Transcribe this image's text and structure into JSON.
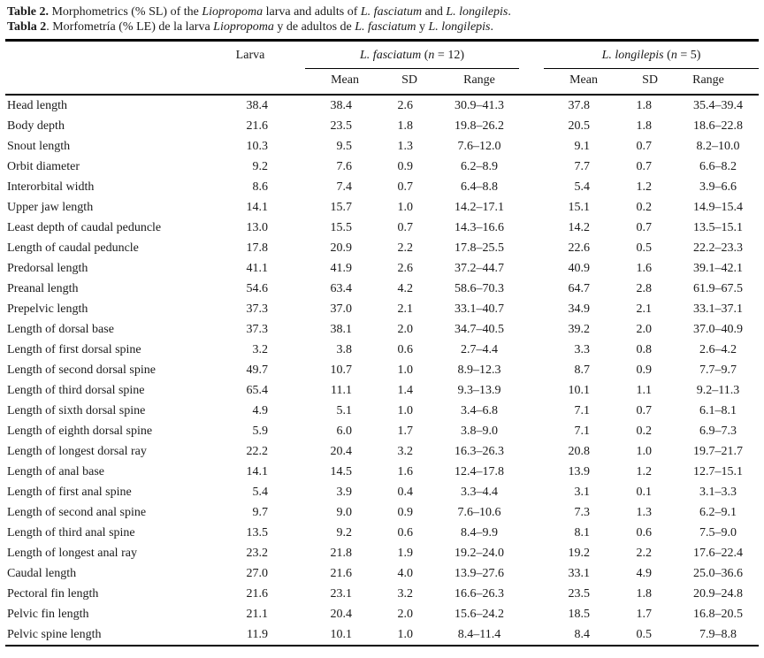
{
  "colors": {
    "background": "#ffffff",
    "text": "#1a1a1a",
    "rule": "#000000"
  },
  "captions": [
    {
      "segments": [
        {
          "text": "Table 2.",
          "bold": true
        },
        {
          "text": " Morphometrics (% SL) of the "
        },
        {
          "text": "Liopropoma",
          "italic": true
        },
        {
          "text": " larva and adults of "
        },
        {
          "text": "L. fasciatum",
          "italic": true
        },
        {
          "text": " and "
        },
        {
          "text": "L. longilepis",
          "italic": true
        },
        {
          "text": "."
        }
      ]
    },
    {
      "segments": [
        {
          "text": "Tabla 2",
          "bold": true
        },
        {
          "text": ". Morfometría (% LE) de la larva "
        },
        {
          "text": "Liopropoma",
          "italic": true
        },
        {
          "text": " y de adultos de "
        },
        {
          "text": "L. fasciatum",
          "italic": true
        },
        {
          "text": " y "
        },
        {
          "text": "L. longilepis",
          "italic": true
        },
        {
          "text": "."
        }
      ]
    }
  ],
  "table": {
    "larva_header": "Larva",
    "groups": [
      {
        "segments": [
          {
            "text": "L. fasciatum",
            "italic": true
          },
          {
            "text": " ("
          },
          {
            "text": "n",
            "italic": true
          },
          {
            "text": " = 12)"
          }
        ]
      },
      {
        "segments": [
          {
            "text": "L. longilepis",
            "italic": true
          },
          {
            "text": " ("
          },
          {
            "text": "n",
            "italic": true
          },
          {
            "text": " = 5)"
          }
        ]
      }
    ],
    "subheaders": [
      "Mean",
      "SD",
      "Range"
    ],
    "rows": [
      {
        "label": "Head length",
        "larva": "38.4",
        "f_mean": "38.4",
        "f_sd": "2.6",
        "f_range": "30.9–41.3",
        "l_mean": "37.8",
        "l_sd": "1.8",
        "l_range": "35.4–39.4"
      },
      {
        "label": "Body depth",
        "larva": "21.6",
        "f_mean": "23.5",
        "f_sd": "1.8",
        "f_range": "19.8–26.2",
        "l_mean": "20.5",
        "l_sd": "1.8",
        "l_range": "18.6–22.8"
      },
      {
        "label": "Snout length",
        "larva": "10.3",
        "f_mean": "9.5",
        "f_sd": "1.3",
        "f_range": "7.6–12.0",
        "l_mean": "9.1",
        "l_sd": "0.7",
        "l_range": "8.2–10.0"
      },
      {
        "label": "Orbit diameter",
        "larva": "9.2",
        "f_mean": "7.6",
        "f_sd": "0.9",
        "f_range": "6.2–8.9",
        "l_mean": "7.7",
        "l_sd": "0.7",
        "l_range": "6.6–8.2"
      },
      {
        "label": "Interorbital width",
        "larva": "8.6",
        "f_mean": "7.4",
        "f_sd": "0.7",
        "f_range": "6.4–8.8",
        "l_mean": "5.4",
        "l_sd": "1.2",
        "l_range": "3.9–6.6"
      },
      {
        "label": "Upper jaw length",
        "larva": "14.1",
        "f_mean": "15.7",
        "f_sd": "1.0",
        "f_range": "14.2–17.1",
        "l_mean": "15.1",
        "l_sd": "0.2",
        "l_range": "14.9–15.4"
      },
      {
        "label": "Least depth of caudal peduncle",
        "larva": "13.0",
        "f_mean": "15.5",
        "f_sd": "0.7",
        "f_range": "14.3–16.6",
        "l_mean": "14.2",
        "l_sd": "0.7",
        "l_range": "13.5–15.1"
      },
      {
        "label": "Length of caudal peduncle",
        "larva": "17.8",
        "f_mean": "20.9",
        "f_sd": "2.2",
        "f_range": "17.8–25.5",
        "l_mean": "22.6",
        "l_sd": "0.5",
        "l_range": "22.2–23.3"
      },
      {
        "label": "Predorsal length",
        "larva": "41.1",
        "f_mean": "41.9",
        "f_sd": "2.6",
        "f_range": "37.2–44.7",
        "l_mean": "40.9",
        "l_sd": "1.6",
        "l_range": "39.1–42.1"
      },
      {
        "label": "Preanal length",
        "larva": "54.6",
        "f_mean": "63.4",
        "f_sd": "4.2",
        "f_range": "58.6–70.3",
        "l_mean": "64.7",
        "l_sd": "2.8",
        "l_range": "61.9–67.5"
      },
      {
        "label": "Prepelvic length",
        "larva": "37.3",
        "f_mean": "37.0",
        "f_sd": "2.1",
        "f_range": "33.1–40.7",
        "l_mean": "34.9",
        "l_sd": "2.1",
        "l_range": "33.1–37.1"
      },
      {
        "label": "Length of dorsal base",
        "larva": "37.3",
        "f_mean": "38.1",
        "f_sd": "2.0",
        "f_range": "34.7–40.5",
        "l_mean": "39.2",
        "l_sd": "2.0",
        "l_range": "37.0–40.9"
      },
      {
        "label": "Length of first dorsal spine",
        "larva": "3.2",
        "f_mean": "3.8",
        "f_sd": "0.6",
        "f_range": "2.7–4.4",
        "l_mean": "3.3",
        "l_sd": "0.8",
        "l_range": "2.6–4.2"
      },
      {
        "label": "Length of second dorsal spine",
        "larva": "49.7",
        "f_mean": "10.7",
        "f_sd": "1.0",
        "f_range": "8.9–12.3",
        "l_mean": "8.7",
        "l_sd": "0.9",
        "l_range": "7.7–9.7"
      },
      {
        "label": "Length of third dorsal spine",
        "larva": "65.4",
        "f_mean": "11.1",
        "f_sd": "1.4",
        "f_range": "9.3–13.9",
        "l_mean": "10.1",
        "l_sd": "1.1",
        "l_range": "9.2–11.3"
      },
      {
        "label": "Length of sixth dorsal spine",
        "larva": "4.9",
        "f_mean": "5.1",
        "f_sd": "1.0",
        "f_range": "3.4–6.8",
        "l_mean": "7.1",
        "l_sd": "0.7",
        "l_range": "6.1–8.1"
      },
      {
        "label": "Length of eighth dorsal spine",
        "larva": "5.9",
        "f_mean": "6.0",
        "f_sd": "1.7",
        "f_range": "3.8–9.0",
        "l_mean": "7.1",
        "l_sd": "0.2",
        "l_range": "6.9–7.3"
      },
      {
        "label": "Length of longest dorsal ray",
        "larva": "22.2",
        "f_mean": "20.4",
        "f_sd": "3.2",
        "f_range": "16.3–26.3",
        "l_mean": "20.8",
        "l_sd": "1.0",
        "l_range": "19.7–21.7"
      },
      {
        "label": "Length of anal base",
        "larva": "14.1",
        "f_mean": "14.5",
        "f_sd": "1.6",
        "f_range": "12.4–17.8",
        "l_mean": "13.9",
        "l_sd": "1.2",
        "l_range": "12.7–15.1"
      },
      {
        "label": "Length of first anal spine",
        "larva": "5.4",
        "f_mean": "3.9",
        "f_sd": "0.4",
        "f_range": "3.3–4.4",
        "l_mean": "3.1",
        "l_sd": "0.1",
        "l_range": "3.1–3.3"
      },
      {
        "label": "Length of second anal spine",
        "larva": "9.7",
        "f_mean": "9.0",
        "f_sd": "0.9",
        "f_range": "7.6–10.6",
        "l_mean": "7.3",
        "l_sd": "1.3",
        "l_range": "6.2–9.1"
      },
      {
        "label": "Length of third anal spine",
        "larva": "13.5",
        "f_mean": "9.2",
        "f_sd": "0.6",
        "f_range": "8.4–9.9",
        "l_mean": "8.1",
        "l_sd": "0.6",
        "l_range": "7.5–9.0"
      },
      {
        "label": "Length of longest anal ray",
        "larva": "23.2",
        "f_mean": "21.8",
        "f_sd": "1.9",
        "f_range": "19.2–24.0",
        "l_mean": "19.2",
        "l_sd": "2.2",
        "l_range": "17.6–22.4"
      },
      {
        "label": "Caudal length",
        "larva": "27.0",
        "f_mean": "21.6",
        "f_sd": "4.0",
        "f_range": "13.9–27.6",
        "l_mean": "33.1",
        "l_sd": "4.9",
        "l_range": "25.0–36.6"
      },
      {
        "label": "Pectoral fin length",
        "larva": "21.6",
        "f_mean": "23.1",
        "f_sd": "3.2",
        "f_range": "16.6–26.3",
        "l_mean": "23.5",
        "l_sd": "1.8",
        "l_range": "20.9–24.8"
      },
      {
        "label": "Pelvic fin length",
        "larva": "21.1",
        "f_mean": "20.4",
        "f_sd": "2.0",
        "f_range": "15.6–24.2",
        "l_mean": "18.5",
        "l_sd": "1.7",
        "l_range": "16.8–20.5"
      },
      {
        "label": "Pelvic spine length",
        "larva": "11.9",
        "f_mean": "10.1",
        "f_sd": "1.0",
        "f_range": "8.4–11.4",
        "l_mean": "8.4",
        "l_sd": "0.5",
        "l_range": "7.9–8.8"
      }
    ]
  }
}
